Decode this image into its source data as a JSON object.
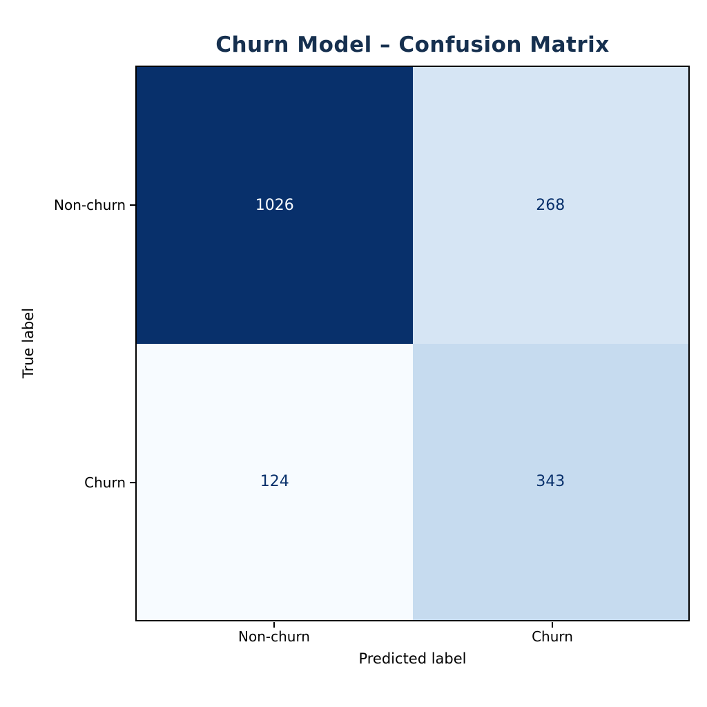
{
  "chart_data": {
    "type": "heatmap",
    "title": "Churn Model – Confusion Matrix",
    "title_color": "#16304f",
    "xlabel": "Predicted label",
    "ylabel": "True label",
    "x_categories": [
      "Non-churn",
      "Churn"
    ],
    "y_categories": [
      "Non-churn",
      "Churn"
    ],
    "matrix": [
      [
        1026,
        268
      ],
      [
        124,
        343
      ]
    ],
    "colormap": "Blues",
    "cell_colors": [
      [
        "#08306b",
        "#d6e5f4"
      ],
      [
        "#f7fbff",
        "#c6dbef"
      ]
    ],
    "cell_text_colors": [
      [
        "#f7fbff",
        "#08306b"
      ],
      [
        "#08306b",
        "#08306b"
      ]
    ],
    "spine_color": "#000000",
    "legend": "none",
    "grid": false
  }
}
